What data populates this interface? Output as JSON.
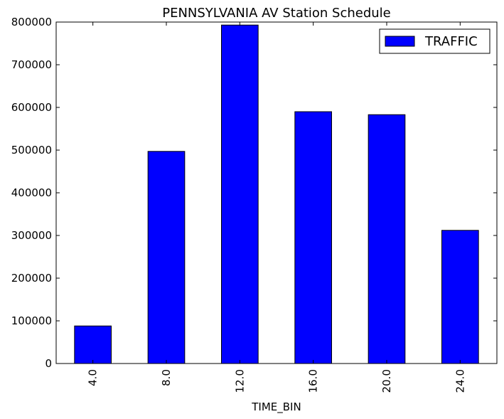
{
  "chart_data": {
    "type": "bar",
    "title": "PENNSYLVANIA AV Station Schedule",
    "xlabel": "TIME_BIN",
    "ylabel": "",
    "categories": [
      "4.0",
      "8.0",
      "12.0",
      "16.0",
      "20.0",
      "24.0"
    ],
    "series": [
      {
        "name": "TRAFFIC",
        "color": "#0000ff",
        "values": [
          88000,
          497000,
          793000,
          590000,
          583000,
          312000
        ]
      }
    ],
    "ylim": [
      0,
      800000
    ],
    "yticks": [
      "0",
      "100000",
      "200000",
      "300000",
      "400000",
      "500000",
      "600000",
      "700000",
      "800000"
    ],
    "ytick_values": [
      0,
      100000,
      200000,
      300000,
      400000,
      500000,
      600000,
      700000,
      800000
    ],
    "grid": false,
    "legend_position": "top-right",
    "x_tick_rotation": "vertical"
  }
}
